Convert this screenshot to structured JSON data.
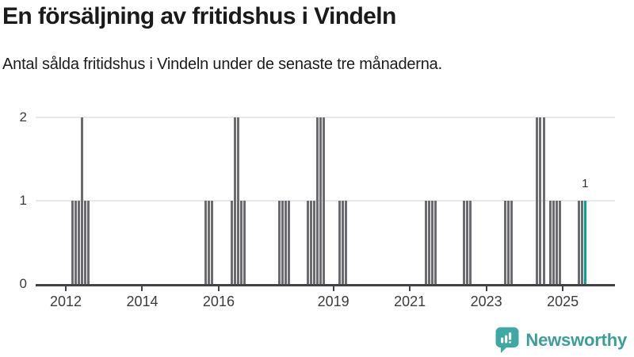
{
  "header": {
    "title": "En försäljning av fritidshus i Vindeln",
    "subtitle": "Antal sålda fritidshus i Vindeln under de senaste tre månaderna."
  },
  "chart_data": {
    "type": "bar",
    "title": "En försäljning av fritidshus i Vindeln",
    "subtitle": "Antal sålda fritidshus i Vindeln under de senaste tre månaderna.",
    "xlabel": "",
    "ylabel": "",
    "ylim": [
      0,
      2
    ],
    "yticks": [
      0,
      1,
      2
    ],
    "xticks": [
      2012,
      2014,
      2016,
      2019,
      2021,
      2023,
      2025
    ],
    "grid": "horizontal",
    "legend": "none",
    "bar_color": "#6b6b70",
    "highlight_color": "#00a69c",
    "annotation": {
      "month": "2025-08",
      "label": "1"
    },
    "series": [
      {
        "month": "2012-03",
        "value": 1
      },
      {
        "month": "2012-04",
        "value": 1
      },
      {
        "month": "2012-05",
        "value": 1
      },
      {
        "month": "2012-06",
        "value": 2
      },
      {
        "month": "2012-07",
        "value": 1
      },
      {
        "month": "2012-08",
        "value": 1
      },
      {
        "month": "2015-09",
        "value": 1
      },
      {
        "month": "2015-10",
        "value": 1
      },
      {
        "month": "2015-11",
        "value": 1
      },
      {
        "month": "2016-05",
        "value": 1
      },
      {
        "month": "2016-06",
        "value": 2
      },
      {
        "month": "2016-07",
        "value": 2
      },
      {
        "month": "2016-08",
        "value": 1
      },
      {
        "month": "2016-09",
        "value": 1
      },
      {
        "month": "2017-08",
        "value": 1
      },
      {
        "month": "2017-09",
        "value": 1
      },
      {
        "month": "2017-10",
        "value": 1
      },
      {
        "month": "2017-11",
        "value": 1
      },
      {
        "month": "2018-05",
        "value": 1
      },
      {
        "month": "2018-06",
        "value": 1
      },
      {
        "month": "2018-07",
        "value": 1
      },
      {
        "month": "2018-08",
        "value": 2
      },
      {
        "month": "2018-09",
        "value": 2
      },
      {
        "month": "2018-10",
        "value": 2
      },
      {
        "month": "2019-03",
        "value": 1
      },
      {
        "month": "2019-04",
        "value": 1
      },
      {
        "month": "2019-05",
        "value": 1
      },
      {
        "month": "2021-06",
        "value": 1
      },
      {
        "month": "2021-07",
        "value": 1
      },
      {
        "month": "2021-08",
        "value": 1
      },
      {
        "month": "2021-09",
        "value": 1
      },
      {
        "month": "2022-06",
        "value": 1
      },
      {
        "month": "2022-07",
        "value": 1
      },
      {
        "month": "2022-08",
        "value": 1
      },
      {
        "month": "2023-07",
        "value": 1
      },
      {
        "month": "2023-08",
        "value": 1
      },
      {
        "month": "2023-09",
        "value": 1
      },
      {
        "month": "2024-05",
        "value": 2
      },
      {
        "month": "2024-06",
        "value": 2
      },
      {
        "month": "2024-07",
        "value": 2
      },
      {
        "month": "2024-09",
        "value": 1
      },
      {
        "month": "2024-10",
        "value": 1
      },
      {
        "month": "2024-11",
        "value": 1
      },
      {
        "month": "2024-12",
        "value": 1
      },
      {
        "month": "2025-06",
        "value": 1
      },
      {
        "month": "2025-07",
        "value": 1
      },
      {
        "month": "2025-08",
        "value": 1,
        "highlight": true
      }
    ]
  },
  "footer": {
    "brand": "Newsworthy",
    "logo_color": "#3fa8a0"
  }
}
